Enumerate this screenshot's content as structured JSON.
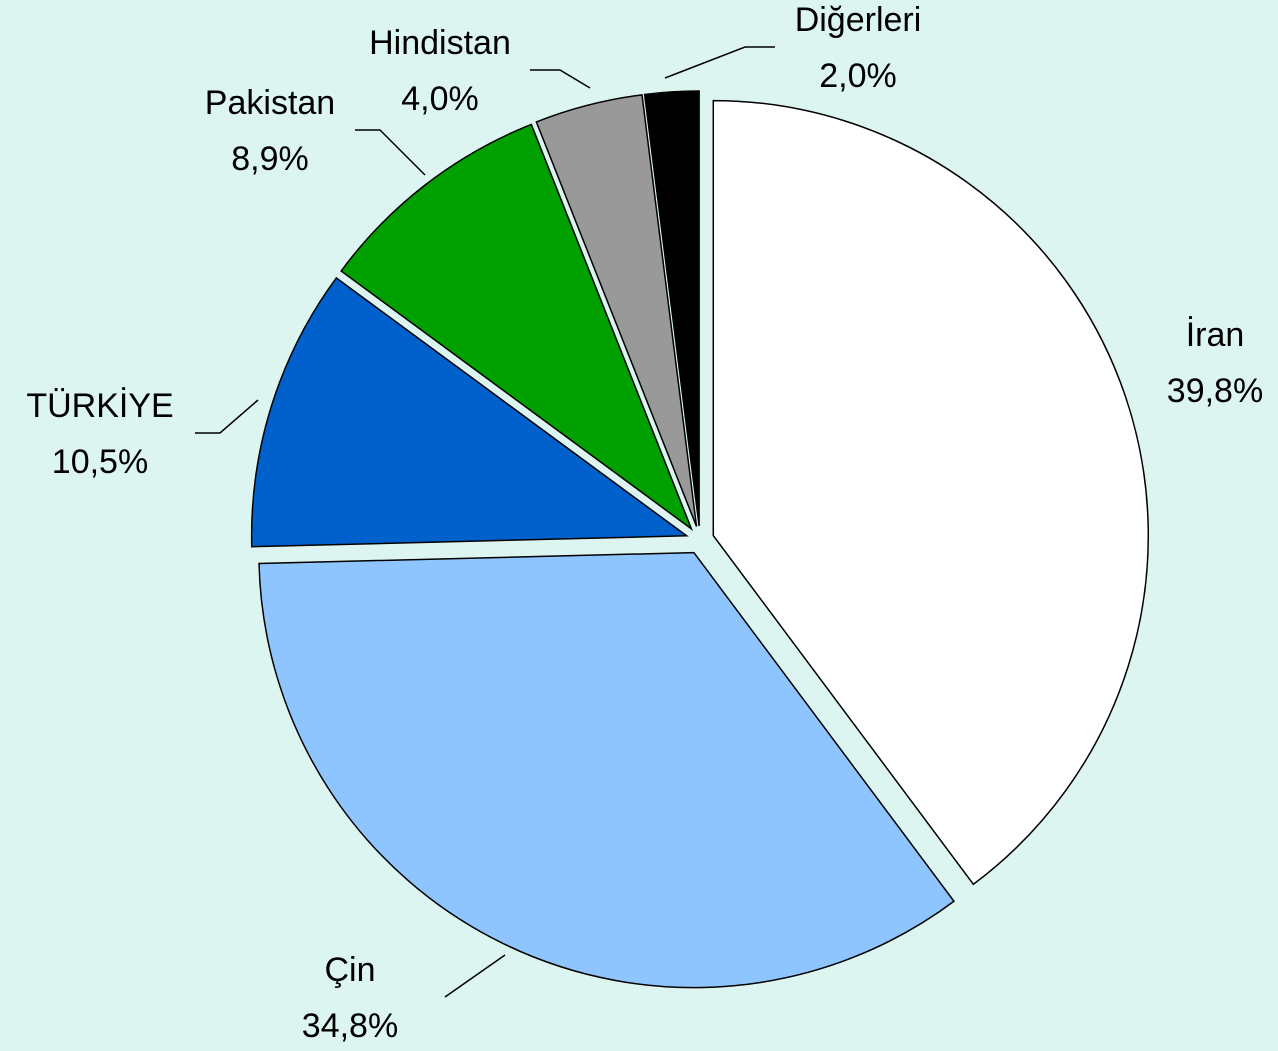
{
  "chart_data": {
    "type": "pie",
    "categories": [
      "İran",
      "Çin",
      "TÜRKİYE",
      "Pakistan",
      "Hindistan",
      "Diğerleri"
    ],
    "values": [
      39.8,
      34.8,
      10.5,
      8.9,
      4.0,
      2.0
    ],
    "value_labels": [
      "39,8%",
      "34,8%",
      "10,5%",
      "8,9%",
      "4,0%",
      "2,0%"
    ],
    "colors": [
      "#ffffff",
      "#8fc5ff",
      "#0060cc",
      "#00a000",
      "#999999",
      "#000000"
    ]
  }
}
